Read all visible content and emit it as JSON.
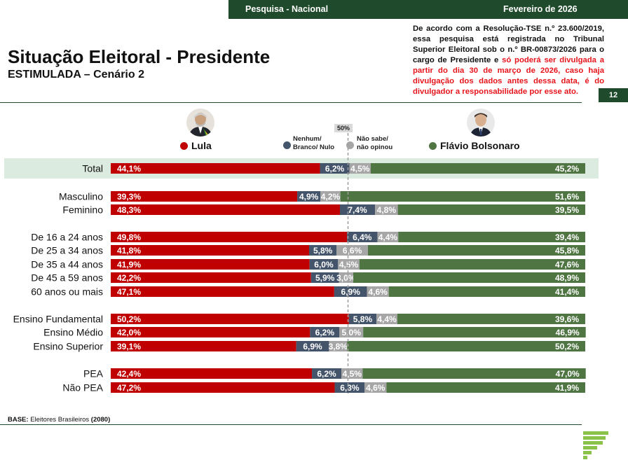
{
  "header": {
    "survey_label": "Pesquisa - Nacional",
    "date_label": "Fevereiro de 2026",
    "page_number": "12"
  },
  "legal": {
    "text_black": "De acordo com a Resolução-TSE n.º 23.600/2019, essa pesquisa está registrada no Tribunal Superior Eleitoral sob o n.º BR-00873/2026 para o cargo de Presidente e ",
    "text_red": "só poderá ser divulgada a partir do dia 30 de março de 2026, caso haja divulgação dos dados antes dessa data, é do divulgador a responsabilidade por esse ato."
  },
  "title": "Situação Eleitoral - Presidente",
  "subtitle": "ESTIMULADA – Cenário 2",
  "legend": {
    "lula": "Lula",
    "nulo_line1": "Nenhum/",
    "nulo_line2": "Branco/ Nulo",
    "nao_sabe_line1": "Não sabe/",
    "nao_sabe_line2": "não opinou",
    "flavio": "Flávio Bolsonaro",
    "midline_label": "50%"
  },
  "colors": {
    "lula": "#c00000",
    "nulo": "#44546a",
    "nao_sabe": "#a6a6a6",
    "flavio": "#4e7542",
    "highlight": "#dcebe0",
    "brand_dark": "#1f4a2b"
  },
  "base": {
    "label": "BASE:",
    "text": " Eleitores Brasileiros ",
    "count": "(2080)"
  },
  "chart_data": {
    "type": "bar",
    "stacked": true,
    "orientation": "horizontal",
    "percent_scale": [
      0,
      100
    ],
    "title": "Situação Eleitoral - Presidente",
    "series": [
      "Lula",
      "Nenhum/ Branco/ Nulo",
      "Não sabe/ não opinou",
      "Flávio Bolsonaro"
    ],
    "rows": [
      {
        "category": "Total",
        "group": 0,
        "highlight": true,
        "values": [
          44.1,
          6.2,
          4.5,
          45.2
        ],
        "labels": [
          "44,1%",
          "6,2%",
          "4,5%",
          "45,2%"
        ]
      },
      {
        "category": "Masculino",
        "group": 1,
        "values": [
          39.3,
          4.9,
          4.2,
          51.6
        ],
        "labels": [
          "39,3%",
          "4,9%",
          "4,2%",
          "51,6%"
        ]
      },
      {
        "category": "Feminino",
        "group": 1,
        "values": [
          48.3,
          7.4,
          4.8,
          39.5
        ],
        "labels": [
          "48,3%",
          "7,4%",
          "4,8%",
          "39,5%"
        ]
      },
      {
        "category": "De 16 a 24 anos",
        "group": 2,
        "values": [
          49.8,
          6.4,
          4.4,
          39.4
        ],
        "labels": [
          "49,8%",
          "6,4%",
          "4,4%",
          "39,4%"
        ]
      },
      {
        "category": "De 25 a 34 anos",
        "group": 2,
        "values": [
          41.8,
          5.8,
          6.6,
          45.8
        ],
        "labels": [
          "41,8%",
          "5,8%",
          "6,6%",
          "45,8%"
        ]
      },
      {
        "category": "De 35 a 44 anos",
        "group": 2,
        "values": [
          41.9,
          6.0,
          4.5,
          47.6
        ],
        "labels": [
          "41,9%",
          "6,0%",
          "4,5%",
          "47,6%"
        ]
      },
      {
        "category": "De 45 a 59 anos",
        "group": 2,
        "values": [
          42.2,
          5.9,
          3.0,
          48.9
        ],
        "labels": [
          "42,2%",
          "5,9%",
          "3,0%",
          "48,9%"
        ]
      },
      {
        "category": "60 anos ou mais",
        "group": 2,
        "values": [
          47.1,
          6.9,
          4.6,
          41.4
        ],
        "labels": [
          "47,1%",
          "6,9%",
          "4,6%",
          "41,4%"
        ]
      },
      {
        "category": "Ensino Fundamental",
        "group": 3,
        "values": [
          50.2,
          5.8,
          4.4,
          39.6
        ],
        "labels": [
          "50,2%",
          "5,8%",
          "4,4%",
          "39,6%"
        ]
      },
      {
        "category": "Ensino Médio",
        "group": 3,
        "values": [
          42.0,
          6.2,
          5.0,
          46.9
        ],
        "labels": [
          "42,0%",
          "6,2%",
          "5,0%",
          "46,9%"
        ]
      },
      {
        "category": "Ensino Superior",
        "group": 3,
        "values": [
          39.1,
          6.9,
          3.8,
          50.2
        ],
        "labels": [
          "39,1%",
          "6,9%",
          "3,8%",
          "50,2%"
        ]
      },
      {
        "category": "PEA",
        "group": 4,
        "values": [
          42.4,
          6.2,
          4.5,
          47.0
        ],
        "labels": [
          "42,4%",
          "6,2%",
          "4,5%",
          "47,0%"
        ]
      },
      {
        "category": "Não PEA",
        "group": 4,
        "values": [
          47.2,
          6.3,
          4.6,
          41.9
        ],
        "labels": [
          "47,2%",
          "6,3%",
          "4,6%",
          "41,9%"
        ]
      }
    ]
  }
}
